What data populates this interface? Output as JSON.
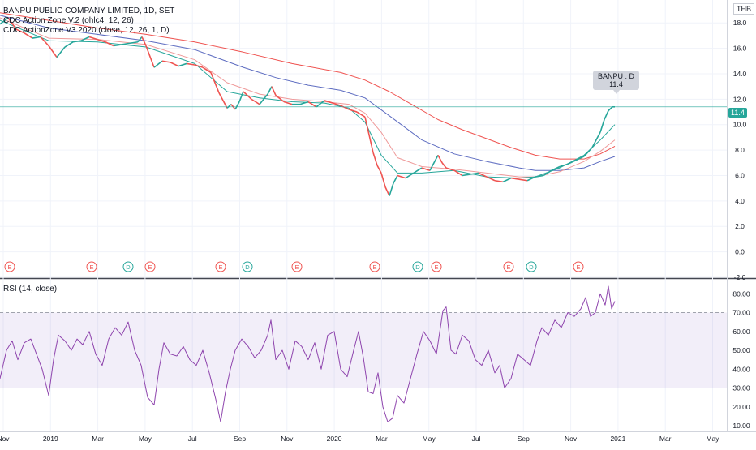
{
  "chart_data": {
    "type": "line",
    "title": "BANPU PUBLIC COMPANY LIMITED, 1D, SET",
    "currency": "THB",
    "indicators": [
      "CDC Action Zone V.2 (ohlc4, 12, 26)",
      "CDC ActionZone V3 2020 (close, 12, 26, 1, D)"
    ],
    "last_price": "11.4",
    "symbol_bubble": {
      "line1": "BANPU : D",
      "line2": "11.4"
    },
    "x_tick_labels": [
      "Nov",
      "2019",
      "Mar",
      "May",
      "Jul",
      "Sep",
      "Nov",
      "2020",
      "Mar",
      "May",
      "Jul",
      "Sep",
      "Nov",
      "2021",
      "Mar",
      "May"
    ],
    "price_axis": {
      "ticks": [
        "18.0",
        "16.0",
        "14.0",
        "12.0",
        "10.0",
        "8.0",
        "6.0",
        "4.0",
        "2.0",
        "0.0",
        "-2.0"
      ],
      "ylim": [
        -2.0,
        19.8
      ]
    },
    "price_series": {
      "name": "",
      "x": [
        0,
        10,
        20,
        30,
        40,
        50,
        60,
        70,
        80,
        90,
        100,
        110,
        120,
        130,
        140,
        150,
        160,
        170,
        175,
        180,
        190,
        200,
        210,
        220,
        230,
        240,
        250,
        260,
        270,
        280,
        285,
        290,
        295,
        300,
        310,
        320,
        330,
        335,
        340,
        350,
        360,
        370,
        380,
        390,
        400,
        410,
        420,
        430,
        440,
        450,
        460,
        465,
        470,
        475,
        480,
        485,
        490,
        500,
        510,
        520,
        530,
        540,
        545,
        550,
        560,
        570,
        580,
        590,
        600,
        610,
        620,
        630,
        640,
        650,
        660,
        670,
        680,
        690,
        700,
        710,
        720,
        730,
        740,
        745,
        750,
        755,
        758
      ],
      "y": [
        17.9,
        18.4,
        17.5,
        17.2,
        16.8,
        16.9,
        16.2,
        15.3,
        16.1,
        16.5,
        16.6,
        16.9,
        16.7,
        16.5,
        16.2,
        16.3,
        16.4,
        16.5,
        16.9,
        16.2,
        14.5,
        15.0,
        14.9,
        14.6,
        14.8,
        14.7,
        14.5,
        14.1,
        12.5,
        11.3,
        11.6,
        11.2,
        11.8,
        12.6,
        12.0,
        11.6,
        12.4,
        13.0,
        12.3,
        11.8,
        11.6,
        11.6,
        11.8,
        11.4,
        11.9,
        11.7,
        11.5,
        11.2,
        11.0,
        10.6,
        7.8,
        6.8,
        6.2,
        5.1,
        4.4,
        5.4,
        6.0,
        5.8,
        6.2,
        6.6,
        6.4,
        7.6,
        7.0,
        6.6,
        6.4,
        6.0,
        6.1,
        6.2,
        5.9,
        5.6,
        5.5,
        5.8,
        5.7,
        5.6,
        5.9,
        6.0,
        6.4,
        6.7,
        6.9,
        7.2,
        7.5,
        8.2,
        9.4,
        10.4,
        11.1,
        11.4,
        11.4
      ]
    },
    "ema_fast": {
      "name": "",
      "x": [
        0,
        60,
        120,
        180,
        240,
        280,
        320,
        360,
        400,
        430,
        450,
        470,
        490,
        520,
        560,
        600,
        640,
        660,
        690,
        720,
        740,
        758
      ],
      "y": [
        18.2,
        16.6,
        16.5,
        16.1,
        14.8,
        12.6,
        12.1,
        11.8,
        11.7,
        11.3,
        10.2,
        7.6,
        6.2,
        6.2,
        6.4,
        5.9,
        5.8,
        5.9,
        6.6,
        7.6,
        8.8,
        10.0
      ]
    },
    "ema_slow": {
      "name": "",
      "x": [
        0,
        60,
        120,
        180,
        240,
        280,
        320,
        360,
        400,
        430,
        450,
        470,
        490,
        520,
        560,
        600,
        640,
        660,
        690,
        720,
        740,
        758
      ],
      "y": [
        18.4,
        16.8,
        16.7,
        16.3,
        15.1,
        13.3,
        12.4,
        12.0,
        11.8,
        11.6,
        10.9,
        9.4,
        7.4,
        6.7,
        6.5,
        6.2,
        5.9,
        5.9,
        6.3,
        7.1,
        7.9,
        8.8
      ]
    },
    "ma_blue": {
      "name": "",
      "x": [
        0,
        60,
        120,
        180,
        240,
        300,
        340,
        380,
        420,
        450,
        480,
        520,
        560,
        600,
        640,
        660,
        690,
        720,
        740,
        758
      ],
      "y": [
        18.6,
        17.6,
        17.1,
        16.6,
        15.9,
        14.5,
        13.7,
        13.1,
        12.7,
        12.1,
        10.7,
        8.8,
        7.7,
        7.1,
        6.6,
        6.4,
        6.4,
        6.6,
        7.1,
        7.5
      ]
    },
    "ma_red": {
      "name": "",
      "x": [
        0,
        60,
        120,
        180,
        240,
        300,
        360,
        420,
        450,
        480,
        510,
        540,
        570,
        600,
        630,
        660,
        690,
        720,
        740,
        758
      ],
      "y": [
        18.8,
        18.2,
        17.6,
        17.1,
        16.5,
        15.7,
        14.8,
        14.1,
        13.5,
        12.6,
        11.5,
        10.4,
        9.6,
        8.9,
        8.2,
        7.6,
        7.3,
        7.3,
        7.7,
        8.3
      ]
    },
    "event_markers": [
      {
        "label": "E",
        "x": 12
      },
      {
        "label": "E",
        "x": 113
      },
      {
        "label": "D",
        "x": 158
      },
      {
        "label": "E",
        "x": 185
      },
      {
        "label": "E",
        "x": 272
      },
      {
        "label": "D",
        "x": 305
      },
      {
        "label": "E",
        "x": 366
      },
      {
        "label": "E",
        "x": 462
      },
      {
        "label": "D",
        "x": 515
      },
      {
        "label": "E",
        "x": 538
      },
      {
        "label": "E",
        "x": 627
      },
      {
        "label": "D",
        "x": 655
      },
      {
        "label": "E",
        "x": 713
      }
    ],
    "rsi": {
      "label": "RSI (14, close)",
      "ticks": [
        "80.00",
        "70.00",
        "60.00",
        "50.00",
        "40.00",
        "30.00",
        "20.00",
        "10.00"
      ],
      "ylim": [
        7,
        87
      ],
      "band": [
        30,
        70
      ],
      "x": [
        0,
        8,
        15,
        22,
        30,
        38,
        45,
        52,
        60,
        66,
        72,
        80,
        88,
        95,
        102,
        110,
        118,
        126,
        134,
        142,
        150,
        158,
        166,
        174,
        182,
        190,
        196,
        202,
        210,
        218,
        226,
        234,
        242,
        250,
        258,
        266,
        272,
        278,
        284,
        290,
        298,
        306,
        314,
        322,
        330,
        334,
        340,
        348,
        356,
        364,
        372,
        380,
        388,
        396,
        404,
        412,
        420,
        428,
        436,
        442,
        448,
        454,
        460,
        466,
        472,
        478,
        484,
        490,
        498,
        506,
        514,
        522,
        530,
        538,
        546,
        550,
        556,
        562,
        570,
        578,
        586,
        594,
        602,
        610,
        616,
        622,
        630,
        638,
        646,
        654,
        662,
        668,
        676,
        684,
        692,
        700,
        708,
        716,
        722,
        728,
        734,
        740,
        746,
        750,
        754,
        758
      ],
      "y": [
        35,
        50,
        55,
        45,
        54,
        56,
        48,
        40,
        26,
        45,
        58,
        55,
        50,
        56,
        53,
        60,
        48,
        42,
        56,
        62,
        58,
        65,
        50,
        42,
        25,
        21,
        40,
        54,
        48,
        47,
        52,
        45,
        42,
        50,
        38,
        24,
        12,
        28,
        40,
        50,
        56,
        52,
        46,
        50,
        58,
        66,
        45,
        50,
        40,
        55,
        52,
        45,
        54,
        40,
        58,
        60,
        40,
        36,
        50,
        60,
        46,
        28,
        27,
        38,
        20,
        12,
        14,
        26,
        22,
        35,
        48,
        60,
        55,
        48,
        71,
        73,
        50,
        48,
        58,
        55,
        45,
        42,
        50,
        38,
        42,
        30,
        35,
        48,
        45,
        42,
        55,
        62,
        58,
        66,
        62,
        70,
        68,
        72,
        78,
        68,
        70,
        80,
        74,
        84,
        72,
        76
      ]
    }
  }
}
